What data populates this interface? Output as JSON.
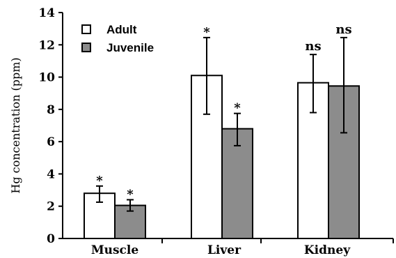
{
  "chart_data": {
    "type": "bar",
    "categories": [
      "Muscle",
      "Liver",
      "Kidney"
    ],
    "ylabel": "Hg concentration (ppm)",
    "xlabel": "",
    "ylim": [
      0,
      14
    ],
    "yticks": [
      0,
      2,
      4,
      6,
      8,
      10,
      12,
      14
    ],
    "grid": false,
    "legend_position": "top-left",
    "series": [
      {
        "name": "Adult",
        "color": "#ffffff",
        "values": [
          2.8,
          10.1,
          9.65
        ],
        "err_low": [
          0.55,
          2.4,
          1.85
        ],
        "err_high": [
          0.45,
          2.35,
          1.75
        ],
        "annotations": [
          "*",
          "*",
          "ns"
        ]
      },
      {
        "name": "Juvenile",
        "color": "#8c8c8c",
        "values": [
          2.05,
          6.8,
          9.45
        ],
        "err_low": [
          0.35,
          1.05,
          2.9
        ],
        "err_high": [
          0.35,
          0.95,
          3.0
        ],
        "annotations": [
          "*",
          "*",
          "ns"
        ]
      }
    ]
  }
}
